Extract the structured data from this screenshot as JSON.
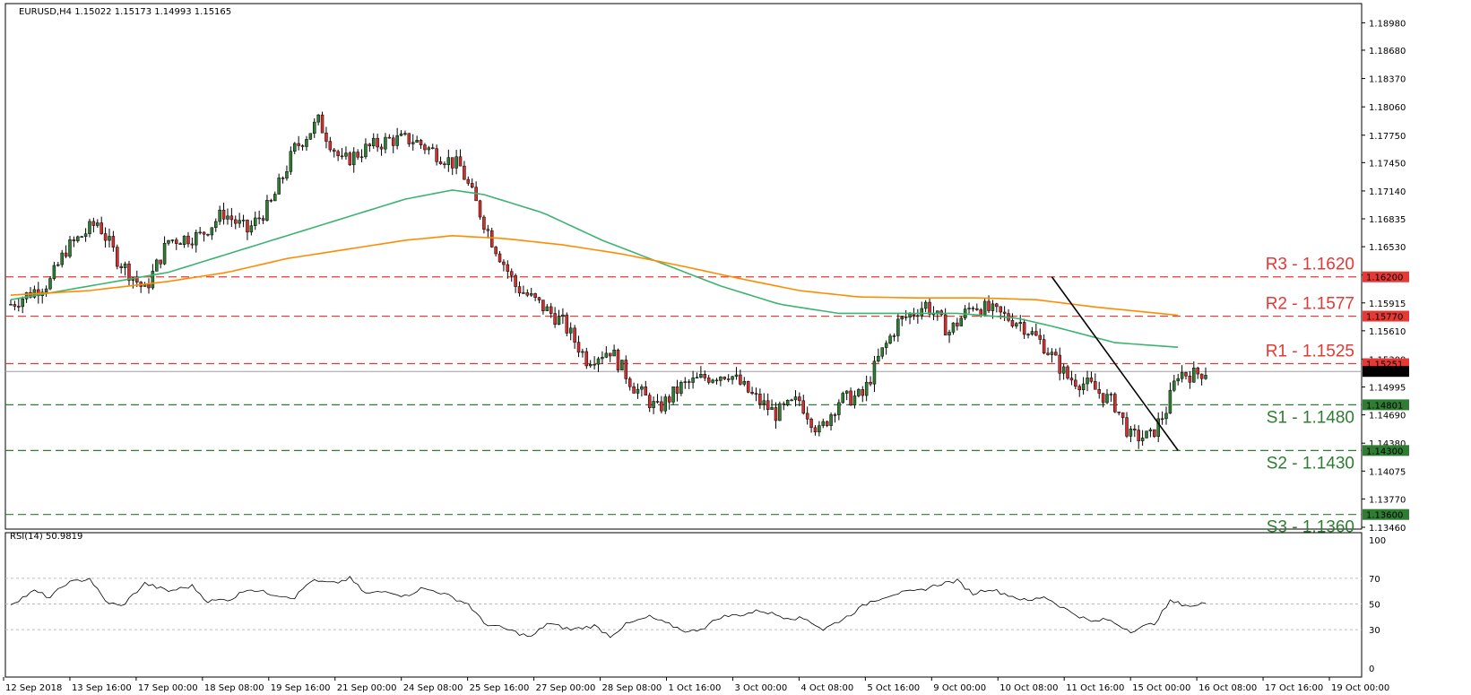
{
  "header": {
    "symbol_line": "EURUSD,H4  1.15022 1.15173 1.14993 1.15165",
    "rsi_label": "RSI(14) 50.9819"
  },
  "colors": {
    "bull": "#2e7d32",
    "bear": "#d32f2f",
    "ma_green": "#3cb371",
    "ma_orange": "#ff8c00",
    "resistance": "#e53935",
    "support": "#2e7d32",
    "trendline": "#000000"
  },
  "chart_data": {
    "type": "candlestick",
    "instrument": "EURUSD",
    "timeframe": "H4",
    "ohlc_last": {
      "open": 1.15022,
      "high": 1.15173,
      "low": 1.14993,
      "close": 1.15165
    },
    "price_ylim": [
      1.1344,
      1.1919
    ],
    "price_ticks": [
      "1.18980",
      "1.18680",
      "1.18370",
      "1.18060",
      "1.17750",
      "1.17450",
      "1.17140",
      "1.16835",
      "1.16530",
      "1.16220",
      "1.15915",
      "1.15610",
      "1.15300",
      "1.14995",
      "1.14690",
      "1.14380",
      "1.14075",
      "1.13770",
      "1.13460"
    ],
    "x_labels": [
      "12 Sep 2018",
      "13 Sep 16:00",
      "17 Sep 00:00",
      "18 Sep 08:00",
      "19 Sep 16:00",
      "21 Sep 00:00",
      "24 Sep 08:00",
      "25 Sep 16:00",
      "27 Sep 00:00",
      "28 Sep 08:00",
      "1 Oct 16:00",
      "3 Oct 00:00",
      "4 Oct 08:00",
      "5 Oct 16:00",
      "9 Oct 00:00",
      "10 Oct 08:00",
      "11 Oct 16:00",
      "15 Oct 00:00",
      "16 Oct 08:00",
      "17 Oct 16:00",
      "19 Oct 00:00"
    ],
    "levels": [
      {
        "label": "R3 - 1.1620",
        "price": 1.162,
        "tag": "1.16200",
        "kind": "resistance"
      },
      {
        "label": "R2 - 1.1577",
        "price": 1.1577,
        "tag": "1.15770",
        "kind": "resistance"
      },
      {
        "label": "R1 - 1.1525",
        "price": 1.1525,
        "tag": "1.15251",
        "kind": "resistance"
      },
      {
        "label": "S1 - 1.1480",
        "price": 1.148,
        "tag": "1.14801",
        "kind": "support"
      },
      {
        "label": "S2 - 1.1430",
        "price": 1.143,
        "tag": "1.14300",
        "kind": "support"
      },
      {
        "label": "S3 - 1.1360",
        "price": 1.136,
        "tag": "1.13600",
        "kind": "support"
      }
    ],
    "current_price": {
      "price": 1.15165,
      "tag": "1.15165"
    },
    "close_path": [
      [
        0,
        1.159
      ],
      [
        10,
        1.1615
      ],
      [
        14,
        1.165
      ],
      [
        22,
        1.168
      ],
      [
        27,
        1.164
      ],
      [
        34,
        1.1605
      ],
      [
        40,
        1.166
      ],
      [
        48,
        1.1665
      ],
      [
        54,
        1.169
      ],
      [
        60,
        1.167
      ],
      [
        66,
        1.17
      ],
      [
        72,
        1.176
      ],
      [
        78,
        1.179
      ],
      [
        84,
        1.1745
      ],
      [
        90,
        1.176
      ],
      [
        96,
        1.177
      ],
      [
        102,
        1.177
      ],
      [
        108,
        1.1755
      ],
      [
        114,
        1.174
      ],
      [
        118,
        1.17
      ],
      [
        122,
        1.166
      ],
      [
        128,
        1.161
      ],
      [
        134,
        1.159
      ],
      [
        140,
        1.157
      ],
      [
        146,
        1.153
      ],
      [
        152,
        1.154
      ],
      [
        158,
        1.15
      ],
      [
        164,
        1.1475
      ],
      [
        170,
        1.15
      ],
      [
        176,
        1.151
      ],
      [
        182,
        1.1515
      ],
      [
        188,
        1.149
      ],
      [
        194,
        1.147
      ],
      [
        200,
        1.1485
      ],
      [
        205,
        1.145
      ],
      [
        210,
        1.1485
      ],
      [
        216,
        1.149
      ],
      [
        220,
        1.153
      ],
      [
        225,
        1.157
      ],
      [
        232,
        1.159
      ],
      [
        238,
        1.156
      ],
      [
        244,
        1.159
      ],
      [
        250,
        1.158
      ],
      [
        256,
        1.157
      ],
      [
        262,
        1.1545
      ],
      [
        268,
        1.151
      ],
      [
        274,
        1.15
      ],
      [
        280,
        1.148
      ],
      [
        284,
        1.1445
      ],
      [
        289,
        1.1445
      ],
      [
        293,
        1.1475
      ],
      [
        296,
        1.1515
      ],
      [
        300,
        1.1513
      ],
      [
        303,
        1.1517
      ]
    ],
    "ma_green": [
      [
        0,
        1.1595
      ],
      [
        20,
        1.161
      ],
      [
        40,
        1.1625
      ],
      [
        55,
        1.1645
      ],
      [
        70,
        1.1665
      ],
      [
        85,
        1.1685
      ],
      [
        100,
        1.1705
      ],
      [
        112,
        1.1715
      ],
      [
        120,
        1.171
      ],
      [
        135,
        1.169
      ],
      [
        150,
        1.166
      ],
      [
        165,
        1.1635
      ],
      [
        180,
        1.161
      ],
      [
        195,
        1.159
      ],
      [
        210,
        1.158
      ],
      [
        225,
        1.158
      ],
      [
        240,
        1.158
      ],
      [
        255,
        1.1575
      ],
      [
        265,
        1.1565
      ],
      [
        280,
        1.1548
      ],
      [
        296,
        1.1543
      ]
    ],
    "ma_orange": [
      [
        0,
        1.16
      ],
      [
        20,
        1.1605
      ],
      [
        40,
        1.1615
      ],
      [
        55,
        1.1625
      ],
      [
        70,
        1.164
      ],
      [
        85,
        1.165
      ],
      [
        100,
        1.166
      ],
      [
        112,
        1.1665
      ],
      [
        125,
        1.1662
      ],
      [
        140,
        1.1655
      ],
      [
        155,
        1.1645
      ],
      [
        170,
        1.1632
      ],
      [
        185,
        1.1618
      ],
      [
        200,
        1.1605
      ],
      [
        215,
        1.1598
      ],
      [
        230,
        1.1597
      ],
      [
        245,
        1.1597
      ],
      [
        260,
        1.1595
      ],
      [
        275,
        1.1587
      ],
      [
        296,
        1.1578
      ]
    ],
    "trendline": [
      [
        1.162,
        264
      ],
      [
        1.143,
        296
      ]
    ],
    "rsi": {
      "ylim": [
        0,
        100
      ],
      "ticks": [
        "100",
        "70",
        "50",
        "30",
        "0"
      ],
      "path": [
        [
          0,
          50
        ],
        [
          6,
          60
        ],
        [
          10,
          55
        ],
        [
          14,
          66
        ],
        [
          20,
          70
        ],
        [
          24,
          52
        ],
        [
          28,
          48
        ],
        [
          34,
          66
        ],
        [
          40,
          60
        ],
        [
          46,
          64
        ],
        [
          50,
          52
        ],
        [
          56,
          54
        ],
        [
          60,
          62
        ],
        [
          66,
          58
        ],
        [
          72,
          55
        ],
        [
          76,
          68
        ],
        [
          82,
          66
        ],
        [
          86,
          70
        ],
        [
          90,
          58
        ],
        [
          96,
          60
        ],
        [
          100,
          56
        ],
        [
          104,
          62
        ],
        [
          108,
          60
        ],
        [
          112,
          55
        ],
        [
          116,
          50
        ],
        [
          120,
          35
        ],
        [
          126,
          30
        ],
        [
          132,
          24
        ],
        [
          136,
          35
        ],
        [
          142,
          30
        ],
        [
          148,
          33
        ],
        [
          152,
          25
        ],
        [
          156,
          34
        ],
        [
          162,
          40
        ],
        [
          166,
          35
        ],
        [
          172,
          28
        ],
        [
          176,
          32
        ],
        [
          180,
          40
        ],
        [
          186,
          42
        ],
        [
          190,
          45
        ],
        [
          196,
          40
        ],
        [
          202,
          38
        ],
        [
          206,
          30
        ],
        [
          212,
          40
        ],
        [
          218,
          52
        ],
        [
          224,
          58
        ],
        [
          230,
          60
        ],
        [
          236,
          66
        ],
        [
          240,
          68
        ],
        [
          244,
          58
        ],
        [
          248,
          62
        ],
        [
          254,
          56
        ],
        [
          258,
          52
        ],
        [
          262,
          56
        ],
        [
          268,
          45
        ],
        [
          274,
          36
        ],
        [
          278,
          38
        ],
        [
          284,
          29
        ],
        [
          290,
          35
        ],
        [
          294,
          52
        ],
        [
          300,
          48
        ],
        [
          303,
          51
        ]
      ]
    }
  }
}
